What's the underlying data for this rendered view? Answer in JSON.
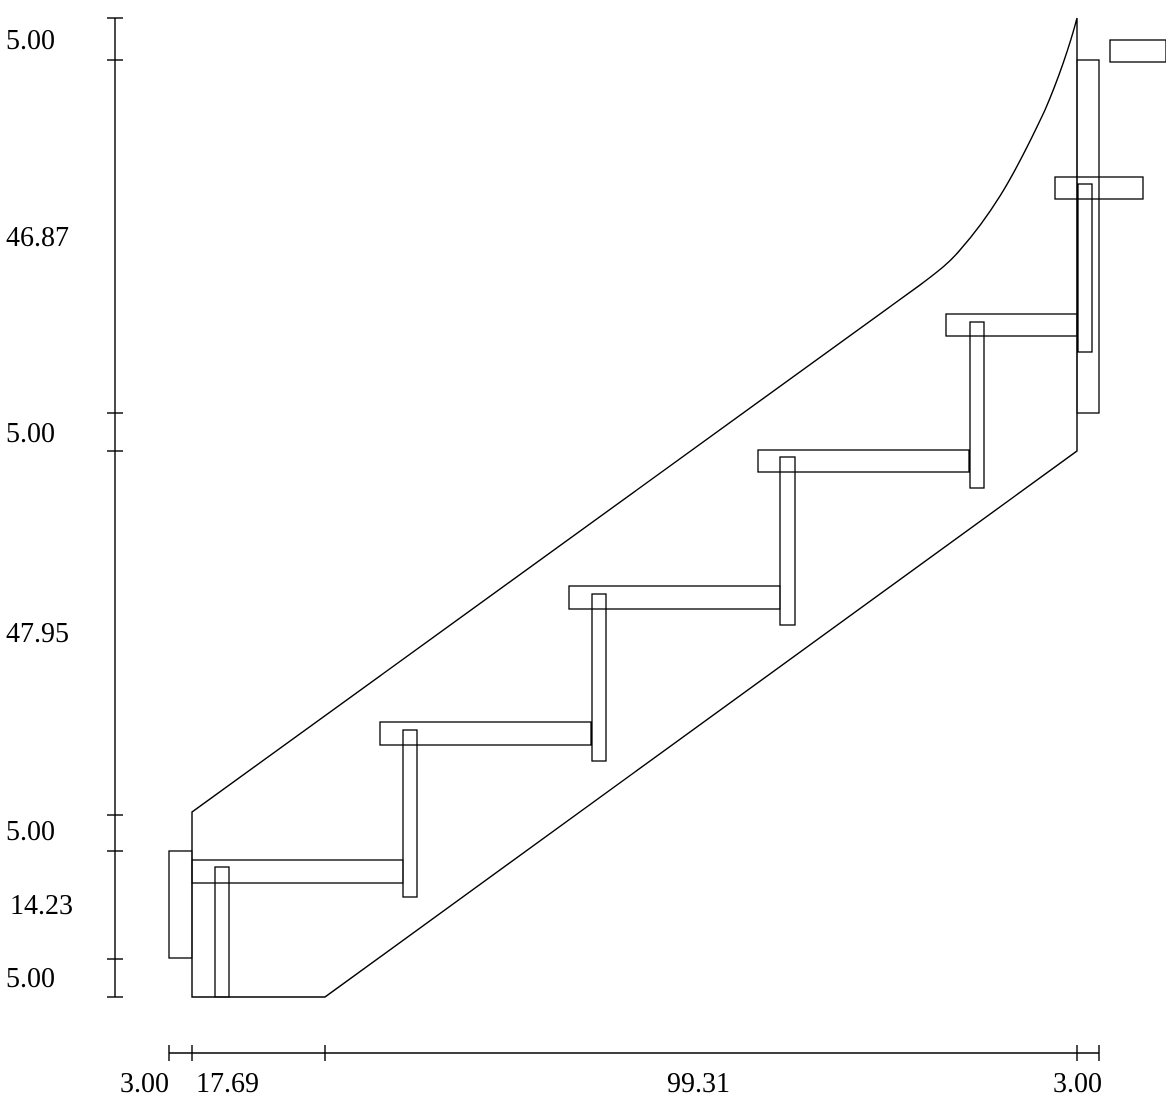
{
  "vertical_dimensions": [
    {
      "id": "top-landing",
      "label": "5.00"
    },
    {
      "id": "upper-rise",
      "label": "46.87"
    },
    {
      "id": "mid-landing",
      "label": "5.00"
    },
    {
      "id": "main-rise",
      "label": "47.95"
    },
    {
      "id": "lower-landing",
      "label": "5.00"
    },
    {
      "id": "first-rise",
      "label": "14.23"
    },
    {
      "id": "floor",
      "label": "5.00"
    }
  ],
  "horizontal_dimensions": [
    {
      "id": "left-post",
      "label": "3.00"
    },
    {
      "id": "first-run",
      "label": "17.69"
    },
    {
      "id": "main-run",
      "label": "99.31"
    },
    {
      "id": "right-post",
      "label": "3.00"
    }
  ]
}
